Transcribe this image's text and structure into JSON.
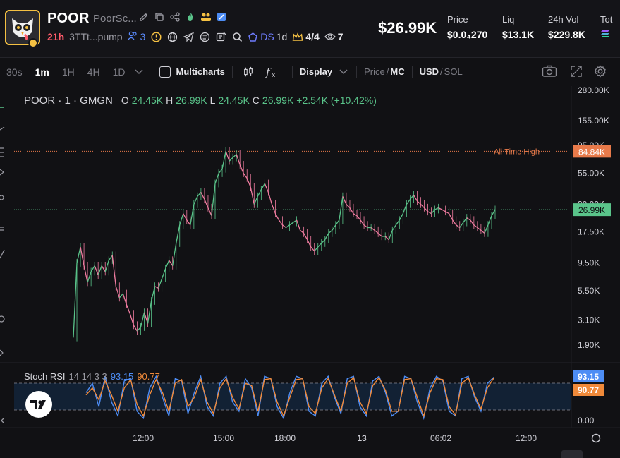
{
  "header": {
    "token_name": "POOR",
    "token_sub": "PoorSc...",
    "age": "21h",
    "address": "3TTt...pump",
    "holders_count": "3",
    "ds_label": "DS",
    "ds_period": "1d",
    "crown_count": "4/4",
    "viewers": "7",
    "price_big": "$26.99K",
    "stats": [
      {
        "label": "Price",
        "value": "$0.0₄270"
      },
      {
        "label": "Liq",
        "value": "$13.1K"
      },
      {
        "label": "24h Vol",
        "value": "$229.8K"
      },
      {
        "label": "Tot",
        "value": ""
      }
    ]
  },
  "toolbar": {
    "timeframes": [
      "30s",
      "1m",
      "1H",
      "4H",
      "1D"
    ],
    "active_timeframe": "1m",
    "multicharts_label": "Multicharts",
    "display_label": "Display",
    "price_label": "Price",
    "mc_label": "MC",
    "usd_label": "USD",
    "sol_label": "SOL"
  },
  "legend": {
    "symbol": "POOR · 1 · GMGN",
    "o_label": "O",
    "o_value": "24.45K",
    "h_label": "H",
    "h_value": "26.99K",
    "l_label": "L",
    "l_value": "24.45K",
    "c_label": "C",
    "c_value": "26.99K",
    "change": "+2.54K (+10.42%)"
  },
  "rsi_legend": {
    "name": "Stoch RSI",
    "params": "14 14 3 3",
    "k_value": "93.15",
    "d_value": "90.77"
  },
  "ath_label": "All Time High",
  "colors": {
    "up": "#5ac48a",
    "down": "#f07ca0",
    "ath": "#e87a4a",
    "rsi_k": "#4d8df5",
    "rsi_d": "#f08a3a",
    "accent_gold": "#f5c143"
  },
  "chart_data": {
    "type": "line",
    "price_axis_ticks": [
      "280.00K",
      "155.00K",
      "95.00K",
      "55.00K",
      "30.00K",
      "17.50K",
      "9.50K",
      "5.50K",
      "3.10K",
      "1.90K"
    ],
    "rsi_axis_ticks": [
      "0.00"
    ],
    "time_ticks": [
      "12:00",
      "15:00",
      "18:00",
      "13",
      "06:02",
      "12:00"
    ],
    "price_labels": {
      "ath": "84.84K",
      "current": "26.99K",
      "rsi_k": "93.15",
      "rsi_d": "90.77"
    },
    "log_scale": true,
    "series": [
      {
        "values": [
          2.2,
          9.5,
          13,
          9,
          6.5,
          8,
          9,
          7.5,
          9,
          8,
          10,
          11,
          6,
          4.8,
          5.2,
          4.2,
          3.5,
          2.8,
          2.5,
          2.7,
          3.6,
          2.9,
          4.5,
          6,
          5.8,
          7,
          8.5,
          10,
          9,
          14,
          20,
          25,
          22,
          20,
          30,
          35,
          38,
          33,
          28,
          24,
          45,
          55,
          60,
          85,
          70,
          75,
          80,
          65,
          55,
          50,
          42,
          30,
          35,
          40,
          45,
          38,
          30,
          25,
          22,
          20,
          19,
          20,
          21,
          22,
          18,
          17,
          15,
          13,
          12,
          13,
          14,
          15,
          17,
          18,
          20,
          22,
          35,
          30,
          28,
          25,
          24,
          22,
          20,
          19,
          19,
          18,
          17,
          16,
          16,
          15,
          18,
          20,
          22,
          25,
          30,
          33,
          36,
          32,
          30,
          28,
          26,
          25,
          27,
          28,
          27,
          26,
          25,
          22,
          20,
          19,
          21,
          23,
          22,
          20,
          19,
          18,
          17,
          20,
          24,
          27
        ]
      },
      {
        "name": "Stoch RSI %K",
        "values": [
          60,
          80,
          30,
          95,
          40,
          10,
          85,
          90,
          20,
          5,
          70,
          95,
          50,
          10,
          90,
          85,
          15,
          60,
          95,
          30,
          10,
          80,
          95,
          40,
          20,
          90,
          70,
          10,
          95,
          90,
          30,
          5,
          60,
          95,
          90,
          20,
          10,
          80,
          95,
          50,
          15,
          90,
          95,
          30,
          10,
          85,
          95,
          60,
          10,
          20,
          95,
          90,
          40,
          5,
          70,
          95,
          85,
          20,
          10,
          90,
          95,
          50,
          20,
          80,
          93
        ]
      },
      {
        "name": "Stoch RSI %D",
        "values": [
          55,
          70,
          45,
          85,
          55,
          20,
          70,
          88,
          35,
          10,
          55,
          88,
          60,
          20,
          80,
          88,
          30,
          50,
          88,
          40,
          15,
          70,
          90,
          50,
          25,
          80,
          75,
          20,
          88,
          90,
          40,
          10,
          50,
          88,
          90,
          30,
          15,
          70,
          90,
          55,
          20,
          80,
          92,
          40,
          15,
          75,
          92,
          65,
          20,
          20,
          88,
          90,
          50,
          10,
          60,
          90,
          88,
          30,
          12,
          80,
          92,
          55,
          25,
          70,
          91
        ]
      }
    ]
  }
}
